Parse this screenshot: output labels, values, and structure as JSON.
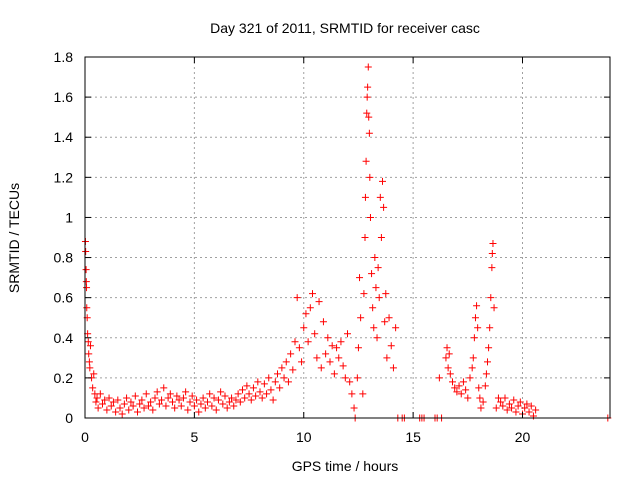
{
  "chart_data": {
    "type": "scatter",
    "title": "Day 321 of 2011, SRMTID for receiver casc",
    "xlabel": "GPS time / hours",
    "ylabel": "SRMTID / TECUs",
    "xlim": [
      0,
      24
    ],
    "ylim": [
      0,
      1.8
    ],
    "grid": true,
    "x_ticks": [
      0,
      5,
      10,
      15,
      20
    ],
    "x_tick_labels": [
      "0",
      "5",
      "10",
      "15",
      "20"
    ],
    "y_ticks": [
      0,
      0.2,
      0.4,
      0.6,
      0.8,
      1,
      1.2,
      1.4,
      1.6,
      1.8
    ],
    "y_tick_labels": [
      "0",
      "0.2",
      "0.4",
      "0.6",
      "0.8",
      "1",
      "1.2",
      "1.4",
      "1.6",
      "1.8"
    ],
    "marker": "+",
    "marker_color": "#ff0000",
    "series": [
      {
        "name": "SRMTID",
        "points": [
          [
            0.02,
            0.88
          ],
          [
            0.03,
            0.83
          ],
          [
            0.05,
            0.74
          ],
          [
            0.06,
            0.68
          ],
          [
            0.07,
            0.65
          ],
          [
            0.08,
            0.55
          ],
          [
            0.1,
            0.5
          ],
          [
            0.12,
            0.42
          ],
          [
            0.15,
            0.38
          ],
          [
            0.17,
            0.32
          ],
          [
            0.2,
            0.28
          ],
          [
            0.22,
            0.25
          ],
          [
            0.25,
            0.36
          ],
          [
            0.3,
            0.2
          ],
          [
            0.35,
            0.15
          ],
          [
            0.4,
            0.22
          ],
          [
            0.45,
            0.12
          ],
          [
            0.5,
            0.08
          ],
          [
            0.55,
            0.1
          ],
          [
            0.6,
            0.05
          ],
          [
            0.7,
            0.12
          ],
          [
            0.8,
            0.07
          ],
          [
            0.9,
            0.09
          ],
          [
            1.0,
            0.04
          ],
          [
            1.1,
            0.1
          ],
          [
            1.2,
            0.06
          ],
          [
            1.3,
            0.08
          ],
          [
            1.4,
            0.03
          ],
          [
            1.5,
            0.09
          ],
          [
            1.6,
            0.05
          ],
          [
            1.7,
            0.02
          ],
          [
            1.8,
            0.07
          ],
          [
            1.9,
            0.1
          ],
          [
            2.0,
            0.04
          ],
          [
            2.1,
            0.08
          ],
          [
            2.2,
            0.06
          ],
          [
            2.3,
            0.11
          ],
          [
            2.4,
            0.03
          ],
          [
            2.5,
            0.07
          ],
          [
            2.6,
            0.09
          ],
          [
            2.7,
            0.05
          ],
          [
            2.8,
            0.12
          ],
          [
            2.9,
            0.06
          ],
          [
            3.0,
            0.08
          ],
          [
            3.1,
            0.04
          ],
          [
            3.2,
            0.1
          ],
          [
            3.3,
            0.13
          ],
          [
            3.4,
            0.07
          ],
          [
            3.5,
            0.09
          ],
          [
            3.6,
            0.15
          ],
          [
            3.7,
            0.06
          ],
          [
            3.8,
            0.1
          ],
          [
            3.9,
            0.12
          ],
          [
            4.0,
            0.08
          ],
          [
            4.1,
            0.05
          ],
          [
            4.2,
            0.11
          ],
          [
            4.3,
            0.09
          ],
          [
            4.4,
            0.06
          ],
          [
            4.5,
            0.1
          ],
          [
            4.6,
            0.13
          ],
          [
            4.7,
            0.04
          ],
          [
            4.8,
            0.08
          ],
          [
            4.9,
            0.11
          ],
          [
            5.0,
            0.06
          ],
          [
            5.1,
            0.09
          ],
          [
            5.2,
            0.03
          ],
          [
            5.3,
            0.07
          ],
          [
            5.4,
            0.1
          ],
          [
            5.5,
            0.05
          ],
          [
            5.6,
            0.08
          ],
          [
            5.7,
            0.12
          ],
          [
            5.8,
            0.06
          ],
          [
            5.9,
            0.1
          ],
          [
            6.0,
            0.04
          ],
          [
            6.1,
            0.09
          ],
          [
            6.2,
            0.13
          ],
          [
            6.3,
            0.07
          ],
          [
            6.4,
            0.11
          ],
          [
            6.5,
            0.05
          ],
          [
            6.6,
            0.08
          ],
          [
            6.7,
            0.1
          ],
          [
            6.8,
            0.06
          ],
          [
            6.9,
            0.09
          ],
          [
            7.0,
            0.12
          ],
          [
            7.1,
            0.08
          ],
          [
            7.2,
            0.14
          ],
          [
            7.3,
            0.1
          ],
          [
            7.4,
            0.16
          ],
          [
            7.5,
            0.12
          ],
          [
            7.6,
            0.09
          ],
          [
            7.7,
            0.15
          ],
          [
            7.8,
            0.11
          ],
          [
            7.9,
            0.18
          ],
          [
            8.0,
            0.13
          ],
          [
            8.1,
            0.1
          ],
          [
            8.2,
            0.17
          ],
          [
            8.3,
            0.12
          ],
          [
            8.4,
            0.2
          ],
          [
            8.5,
            0.14
          ],
          [
            8.6,
            0.09
          ],
          [
            8.7,
            0.18
          ],
          [
            8.8,
            0.22
          ],
          [
            8.9,
            0.15
          ],
          [
            9.0,
            0.25
          ],
          [
            9.1,
            0.2
          ],
          [
            9.2,
            0.28
          ],
          [
            9.3,
            0.18
          ],
          [
            9.4,
            0.32
          ],
          [
            9.5,
            0.24
          ],
          [
            9.6,
            0.38
          ],
          [
            9.7,
            0.6
          ],
          [
            9.8,
            0.35
          ],
          [
            9.9,
            0.28
          ],
          [
            10.0,
            0.45
          ],
          [
            10.1,
            0.52
          ],
          [
            10.2,
            0.38
          ],
          [
            10.3,
            0.55
          ],
          [
            10.4,
            0.62
          ],
          [
            10.5,
            0.42
          ],
          [
            10.6,
            0.3
          ],
          [
            10.7,
            0.58
          ],
          [
            10.8,
            0.25
          ],
          [
            10.9,
            0.48
          ],
          [
            11.0,
            0.32
          ],
          [
            11.1,
            0.4
          ],
          [
            11.2,
            0.28
          ],
          [
            11.3,
            0.36
          ],
          [
            11.4,
            0.22
          ],
          [
            11.5,
            0.35
          ],
          [
            11.6,
            0.3
          ],
          [
            11.7,
            0.38
          ],
          [
            11.8,
            0.26
          ],
          [
            11.9,
            0.2
          ],
          [
            12.0,
            0.42
          ],
          [
            12.1,
            0.18
          ],
          [
            12.2,
            0.12
          ],
          [
            12.3,
            0.05
          ],
          [
            12.35,
            0.0
          ],
          [
            12.45,
            0.2
          ],
          [
            12.5,
            0.35
          ],
          [
            12.55,
            0.7
          ],
          [
            12.6,
            0.5
          ],
          [
            12.7,
            0.12
          ],
          [
            12.75,
            0.62
          ],
          [
            12.8,
            0.9
          ],
          [
            12.82,
            1.1
          ],
          [
            12.85,
            1.28
          ],
          [
            12.88,
            1.52
          ],
          [
            12.9,
            1.6
          ],
          [
            12.92,
            1.65
          ],
          [
            12.95,
            1.75
          ],
          [
            12.97,
            1.5
          ],
          [
            13.0,
            1.42
          ],
          [
            13.02,
            1.2
          ],
          [
            13.05,
            1.0
          ],
          [
            13.1,
            0.72
          ],
          [
            13.15,
            0.55
          ],
          [
            13.2,
            0.45
          ],
          [
            13.25,
            0.8
          ],
          [
            13.3,
            0.65
          ],
          [
            13.35,
            0.4
          ],
          [
            13.4,
            0.75
          ],
          [
            13.45,
            0.6
          ],
          [
            13.5,
            1.1
          ],
          [
            13.55,
            0.9
          ],
          [
            13.6,
            1.18
          ],
          [
            13.65,
            1.05
          ],
          [
            13.7,
            0.48
          ],
          [
            13.75,
            0.62
          ],
          [
            13.8,
            0.3
          ],
          [
            13.9,
            0.5
          ],
          [
            14.0,
            0.36
          ],
          [
            14.1,
            0.25
          ],
          [
            14.2,
            0.45
          ],
          [
            14.3,
            0.0
          ],
          [
            14.5,
            0.0
          ],
          [
            14.6,
            0.0
          ],
          [
            15.3,
            0.0
          ],
          [
            15.4,
            0.0
          ],
          [
            15.5,
            0.0
          ],
          [
            16.2,
            0.2
          ],
          [
            16.0,
            0.0
          ],
          [
            16.1,
            0.0
          ],
          [
            16.3,
            0.0
          ],
          [
            16.5,
            0.3
          ],
          [
            16.55,
            0.35
          ],
          [
            16.6,
            0.25
          ],
          [
            16.65,
            0.32
          ],
          [
            16.7,
            0.22
          ],
          [
            16.8,
            0.18
          ],
          [
            16.9,
            0.15
          ],
          [
            17.0,
            0.13
          ],
          [
            17.1,
            0.16
          ],
          [
            17.2,
            0.12
          ],
          [
            17.3,
            0.18
          ],
          [
            17.4,
            0.14
          ],
          [
            17.5,
            0.1
          ],
          [
            17.6,
            0.2
          ],
          [
            17.7,
            0.25
          ],
          [
            17.75,
            0.3
          ],
          [
            17.8,
            0.4
          ],
          [
            17.85,
            0.5
          ],
          [
            17.9,
            0.56
          ],
          [
            17.95,
            0.45
          ],
          [
            18.0,
            0.15
          ],
          [
            18.05,
            0.1
          ],
          [
            18.1,
            0.05
          ],
          [
            18.2,
            0.08
          ],
          [
            18.3,
            0.16
          ],
          [
            18.35,
            0.22
          ],
          [
            18.4,
            0.28
          ],
          [
            18.45,
            0.35
          ],
          [
            18.5,
            0.45
          ],
          [
            18.55,
            0.6
          ],
          [
            18.6,
            0.75
          ],
          [
            18.62,
            0.82
          ],
          [
            18.65,
            0.87
          ],
          [
            18.7,
            0.55
          ],
          [
            18.8,
            0.05
          ],
          [
            18.9,
            0.1
          ],
          [
            19.0,
            0.08
          ],
          [
            19.1,
            0.06
          ],
          [
            19.2,
            0.1
          ],
          [
            19.3,
            0.04
          ],
          [
            19.4,
            0.07
          ],
          [
            19.5,
            0.05
          ],
          [
            19.6,
            0.09
          ],
          [
            19.7,
            0.03
          ],
          [
            19.8,
            0.06
          ],
          [
            19.9,
            0.08
          ],
          [
            20.0,
            0.02
          ],
          [
            20.1,
            0.05
          ],
          [
            20.2,
            0.07
          ],
          [
            20.3,
            0.03
          ],
          [
            20.4,
            0.06
          ],
          [
            20.5,
            0.01
          ],
          [
            20.6,
            0.04
          ],
          [
            23.9,
            0.0
          ]
        ]
      }
    ]
  }
}
